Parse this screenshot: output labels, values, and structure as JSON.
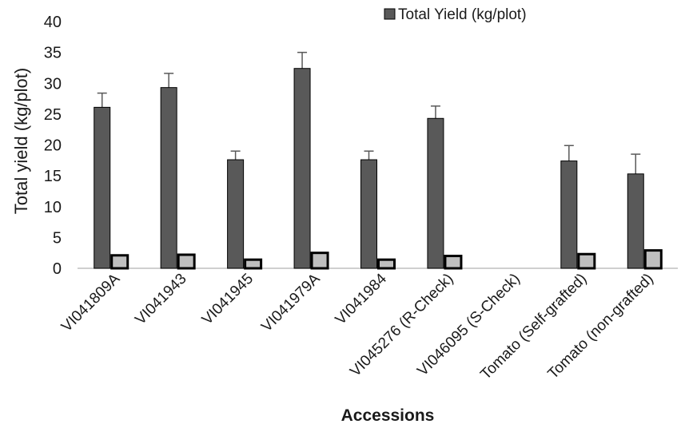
{
  "chart_data": {
    "type": "bar",
    "title": "",
    "xlabel": "Accessions",
    "ylabel": "Total yield (kg/plot)",
    "ylim": [
      0,
      40
    ],
    "yticks": [
      0,
      5,
      10,
      15,
      20,
      25,
      30,
      35,
      40
    ],
    "grid": false,
    "legend_position": "top-right",
    "categories": [
      "VI041809A",
      "VI041943",
      "VI041945",
      "VI041979A",
      "VI041984",
      "VI045276 (R-Check)",
      "VI046095 (S-Check)",
      "Tomato (Self-grafted)",
      "Tomato (non-grafted)"
    ],
    "series": [
      {
        "name": "Total Yield (kg/plot)",
        "color": "#595959",
        "values": [
          26.1,
          29.3,
          17.6,
          32.4,
          17.6,
          24.3,
          0,
          17.4,
          15.3
        ],
        "errors": [
          2.3,
          2.3,
          1.4,
          2.6,
          1.4,
          2.0,
          0,
          2.5,
          3.2
        ]
      },
      {
        "name": "",
        "color": "#bfbfbf",
        "values": [
          2.1,
          2.2,
          1.4,
          2.5,
          1.4,
          2.0,
          0,
          2.3,
          2.9
        ]
      }
    ]
  }
}
